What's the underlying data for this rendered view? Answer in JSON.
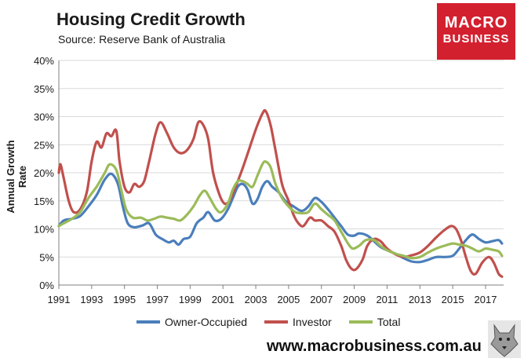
{
  "header": {
    "title": "Housing Credit Growth",
    "subtitle": "Source: Reserve Bank of Australia"
  },
  "logo": {
    "line1": "MACRO",
    "line2": "BUSINESS",
    "color": "#d3202f"
  },
  "footer": {
    "url": "www.macrobusiness.com.au"
  },
  "chart_data": {
    "type": "line",
    "title": "Housing Credit Growth",
    "xlabel": "",
    "ylabel": "Annual Growth Rate",
    "xlim": [
      1991,
      2018.1
    ],
    "ylim": [
      0,
      40
    ],
    "yticks": [
      0,
      5,
      10,
      15,
      20,
      25,
      30,
      35,
      40
    ],
    "ytick_labels": [
      "0%",
      "5%",
      "10%",
      "15%",
      "20%",
      "25%",
      "30%",
      "35%",
      "40%"
    ],
    "xticks": [
      1991,
      1993,
      1995,
      1997,
      1999,
      2001,
      2003,
      2005,
      2007,
      2009,
      2011,
      2013,
      2015,
      2017
    ],
    "xtick_labels": [
      "1991",
      "1993",
      "1995",
      "1997",
      "1999",
      "2001",
      "2003",
      "2005",
      "2007",
      "2009",
      "2011",
      "2013",
      "2015",
      "2017"
    ],
    "grid": true,
    "legend_position": "bottom",
    "series": [
      {
        "name": "Owner-Occupied",
        "color": "#4a7ebb",
        "points": [
          [
            1991.0,
            10.5
          ],
          [
            1991.3,
            11.5
          ],
          [
            1991.8,
            11.8
          ],
          [
            1992.3,
            12.3
          ],
          [
            1992.8,
            14.0
          ],
          [
            1993.3,
            16.0
          ],
          [
            1993.8,
            18.8
          ],
          [
            1994.2,
            19.8
          ],
          [
            1994.6,
            18.0
          ],
          [
            1994.9,
            14.0
          ],
          [
            1995.2,
            11.0
          ],
          [
            1995.6,
            10.3
          ],
          [
            1996.1,
            10.6
          ],
          [
            1996.5,
            11.0
          ],
          [
            1996.9,
            9.0
          ],
          [
            1997.3,
            8.2
          ],
          [
            1997.7,
            7.6
          ],
          [
            1998.0,
            7.9
          ],
          [
            1998.3,
            7.2
          ],
          [
            1998.6,
            8.2
          ],
          [
            1999.0,
            8.6
          ],
          [
            1999.4,
            11.0
          ],
          [
            1999.8,
            12.0
          ],
          [
            2000.1,
            13.0
          ],
          [
            2000.5,
            11.5
          ],
          [
            2000.9,
            11.8
          ],
          [
            2001.3,
            13.5
          ],
          [
            2001.6,
            15.5
          ],
          [
            2001.9,
            17.5
          ],
          [
            2002.2,
            18.0
          ],
          [
            2002.5,
            17.0
          ],
          [
            2002.8,
            14.5
          ],
          [
            2003.1,
            15.3
          ],
          [
            2003.4,
            17.5
          ],
          [
            2003.7,
            18.5
          ],
          [
            2004.0,
            17.5
          ],
          [
            2004.4,
            16.5
          ],
          [
            2004.8,
            15.0
          ],
          [
            2005.3,
            14.0
          ],
          [
            2005.8,
            13.2
          ],
          [
            2006.2,
            14.0
          ],
          [
            2006.6,
            15.5
          ],
          [
            2007.0,
            14.8
          ],
          [
            2007.4,
            13.5
          ],
          [
            2007.8,
            12.0
          ],
          [
            2008.2,
            10.5
          ],
          [
            2008.6,
            9.0
          ],
          [
            2009.0,
            8.8
          ],
          [
            2009.3,
            9.2
          ],
          [
            2009.8,
            8.8
          ],
          [
            2010.2,
            7.8
          ],
          [
            2010.6,
            6.8
          ],
          [
            2011.0,
            6.2
          ],
          [
            2011.5,
            5.6
          ],
          [
            2012.0,
            4.8
          ],
          [
            2012.5,
            4.2
          ],
          [
            2013.0,
            4.1
          ],
          [
            2013.5,
            4.5
          ],
          [
            2014.0,
            5.0
          ],
          [
            2014.5,
            5.0
          ],
          [
            2015.0,
            5.2
          ],
          [
            2015.4,
            6.5
          ],
          [
            2015.8,
            8.0
          ],
          [
            2016.2,
            9.0
          ],
          [
            2016.6,
            8.2
          ],
          [
            2017.0,
            7.6
          ],
          [
            2017.4,
            7.8
          ],
          [
            2017.8,
            8.0
          ],
          [
            2018.0,
            7.4
          ]
        ]
      },
      {
        "name": "Investor",
        "color": "#c0504d",
        "points": [
          [
            1991.0,
            20.0
          ],
          [
            1991.1,
            21.5
          ],
          [
            1991.3,
            19.0
          ],
          [
            1991.6,
            15.0
          ],
          [
            1991.9,
            13.0
          ],
          [
            1992.3,
            13.5
          ],
          [
            1992.7,
            16.5
          ],
          [
            1993.0,
            22.0
          ],
          [
            1993.3,
            25.5
          ],
          [
            1993.6,
            24.5
          ],
          [
            1993.9,
            27.0
          ],
          [
            1994.2,
            26.5
          ],
          [
            1994.5,
            27.5
          ],
          [
            1994.7,
            22.0
          ],
          [
            1995.0,
            17.5
          ],
          [
            1995.3,
            16.5
          ],
          [
            1995.6,
            18.0
          ],
          [
            1995.9,
            17.5
          ],
          [
            1996.2,
            18.5
          ],
          [
            1996.5,
            22.0
          ],
          [
            1996.9,
            27.0
          ],
          [
            1997.2,
            29.0
          ],
          [
            1997.6,
            27.0
          ],
          [
            1998.0,
            24.5
          ],
          [
            1998.4,
            23.5
          ],
          [
            1998.8,
            24.0
          ],
          [
            1999.2,
            26.0
          ],
          [
            1999.5,
            29.0
          ],
          [
            1999.8,
            28.5
          ],
          [
            2000.1,
            26.0
          ],
          [
            2000.4,
            20.0
          ],
          [
            2000.8,
            16.0
          ],
          [
            2001.1,
            14.5
          ],
          [
            2001.4,
            15.0
          ],
          [
            2001.7,
            17.0
          ],
          [
            2002.1,
            20.0
          ],
          [
            2002.4,
            22.5
          ],
          [
            2002.8,
            26.0
          ],
          [
            2003.1,
            28.5
          ],
          [
            2003.4,
            30.5
          ],
          [
            2003.6,
            31.0
          ],
          [
            2003.9,
            28.5
          ],
          [
            2004.2,
            24.0
          ],
          [
            2004.6,
            18.0
          ],
          [
            2005.0,
            15.0
          ],
          [
            2005.3,
            12.5
          ],
          [
            2005.6,
            11.0
          ],
          [
            2005.9,
            10.5
          ],
          [
            2006.3,
            12.0
          ],
          [
            2006.6,
            11.5
          ],
          [
            2007.0,
            11.5
          ],
          [
            2007.4,
            10.5
          ],
          [
            2007.8,
            9.5
          ],
          [
            2008.2,
            7.0
          ],
          [
            2008.5,
            4.5
          ],
          [
            2008.8,
            3.0
          ],
          [
            2009.1,
            2.8
          ],
          [
            2009.5,
            4.5
          ],
          [
            2009.8,
            7.0
          ],
          [
            2010.2,
            8.2
          ],
          [
            2010.6,
            7.8
          ],
          [
            2011.0,
            6.5
          ],
          [
            2011.5,
            5.5
          ],
          [
            2012.0,
            5.0
          ],
          [
            2012.5,
            5.3
          ],
          [
            2013.0,
            5.8
          ],
          [
            2013.5,
            7.0
          ],
          [
            2014.0,
            8.5
          ],
          [
            2014.5,
            9.8
          ],
          [
            2014.9,
            10.5
          ],
          [
            2015.2,
            10.0
          ],
          [
            2015.5,
            8.0
          ],
          [
            2015.8,
            5.0
          ],
          [
            2016.1,
            2.5
          ],
          [
            2016.4,
            2.0
          ],
          [
            2016.8,
            4.0
          ],
          [
            2017.2,
            5.0
          ],
          [
            2017.5,
            4.0
          ],
          [
            2017.8,
            2.0
          ],
          [
            2018.0,
            1.5
          ]
        ]
      },
      {
        "name": "Total",
        "color": "#9bbb59",
        "points": [
          [
            1991.0,
            10.5
          ],
          [
            1991.3,
            11.0
          ],
          [
            1991.8,
            11.8
          ],
          [
            1992.3,
            13.0
          ],
          [
            1992.8,
            15.5
          ],
          [
            1993.3,
            17.5
          ],
          [
            1993.8,
            20.0
          ],
          [
            1994.1,
            21.5
          ],
          [
            1994.5,
            20.5
          ],
          [
            1994.8,
            17.0
          ],
          [
            1995.1,
            13.5
          ],
          [
            1995.5,
            12.0
          ],
          [
            1996.0,
            12.0
          ],
          [
            1996.4,
            11.5
          ],
          [
            1996.8,
            11.8
          ],
          [
            1997.2,
            12.2
          ],
          [
            1997.6,
            12.0
          ],
          [
            1998.0,
            11.8
          ],
          [
            1998.4,
            11.5
          ],
          [
            1998.8,
            12.5
          ],
          [
            1999.2,
            14.0
          ],
          [
            1999.6,
            16.0
          ],
          [
            1999.9,
            16.8
          ],
          [
            2000.2,
            15.5
          ],
          [
            2000.6,
            13.5
          ],
          [
            2000.9,
            13.0
          ],
          [
            2001.3,
            14.5
          ],
          [
            2001.6,
            17.0
          ],
          [
            2001.9,
            18.5
          ],
          [
            2002.2,
            18.5
          ],
          [
            2002.5,
            18.0
          ],
          [
            2002.8,
            17.5
          ],
          [
            2003.1,
            19.5
          ],
          [
            2003.4,
            21.5
          ],
          [
            2003.6,
            22.0
          ],
          [
            2003.9,
            21.0
          ],
          [
            2004.2,
            18.0
          ],
          [
            2004.6,
            15.5
          ],
          [
            2005.0,
            14.0
          ],
          [
            2005.4,
            13.0
          ],
          [
            2005.8,
            12.8
          ],
          [
            2006.2,
            13.0
          ],
          [
            2006.6,
            14.5
          ],
          [
            2007.0,
            13.5
          ],
          [
            2007.4,
            12.5
          ],
          [
            2007.8,
            11.5
          ],
          [
            2008.2,
            9.5
          ],
          [
            2008.6,
            7.5
          ],
          [
            2008.9,
            6.5
          ],
          [
            2009.3,
            7.0
          ],
          [
            2009.7,
            8.0
          ],
          [
            2010.2,
            8.0
          ],
          [
            2010.6,
            7.0
          ],
          [
            2011.0,
            6.2
          ],
          [
            2011.5,
            5.6
          ],
          [
            2012.0,
            5.2
          ],
          [
            2012.5,
            4.8
          ],
          [
            2013.0,
            5.0
          ],
          [
            2013.5,
            5.8
          ],
          [
            2014.0,
            6.5
          ],
          [
            2014.5,
            7.0
          ],
          [
            2015.0,
            7.4
          ],
          [
            2015.4,
            7.2
          ],
          [
            2015.8,
            7.0
          ],
          [
            2016.2,
            6.5
          ],
          [
            2016.6,
            6.0
          ],
          [
            2017.0,
            6.5
          ],
          [
            2017.4,
            6.3
          ],
          [
            2017.8,
            6.0
          ],
          [
            2018.0,
            5.2
          ]
        ]
      }
    ]
  }
}
